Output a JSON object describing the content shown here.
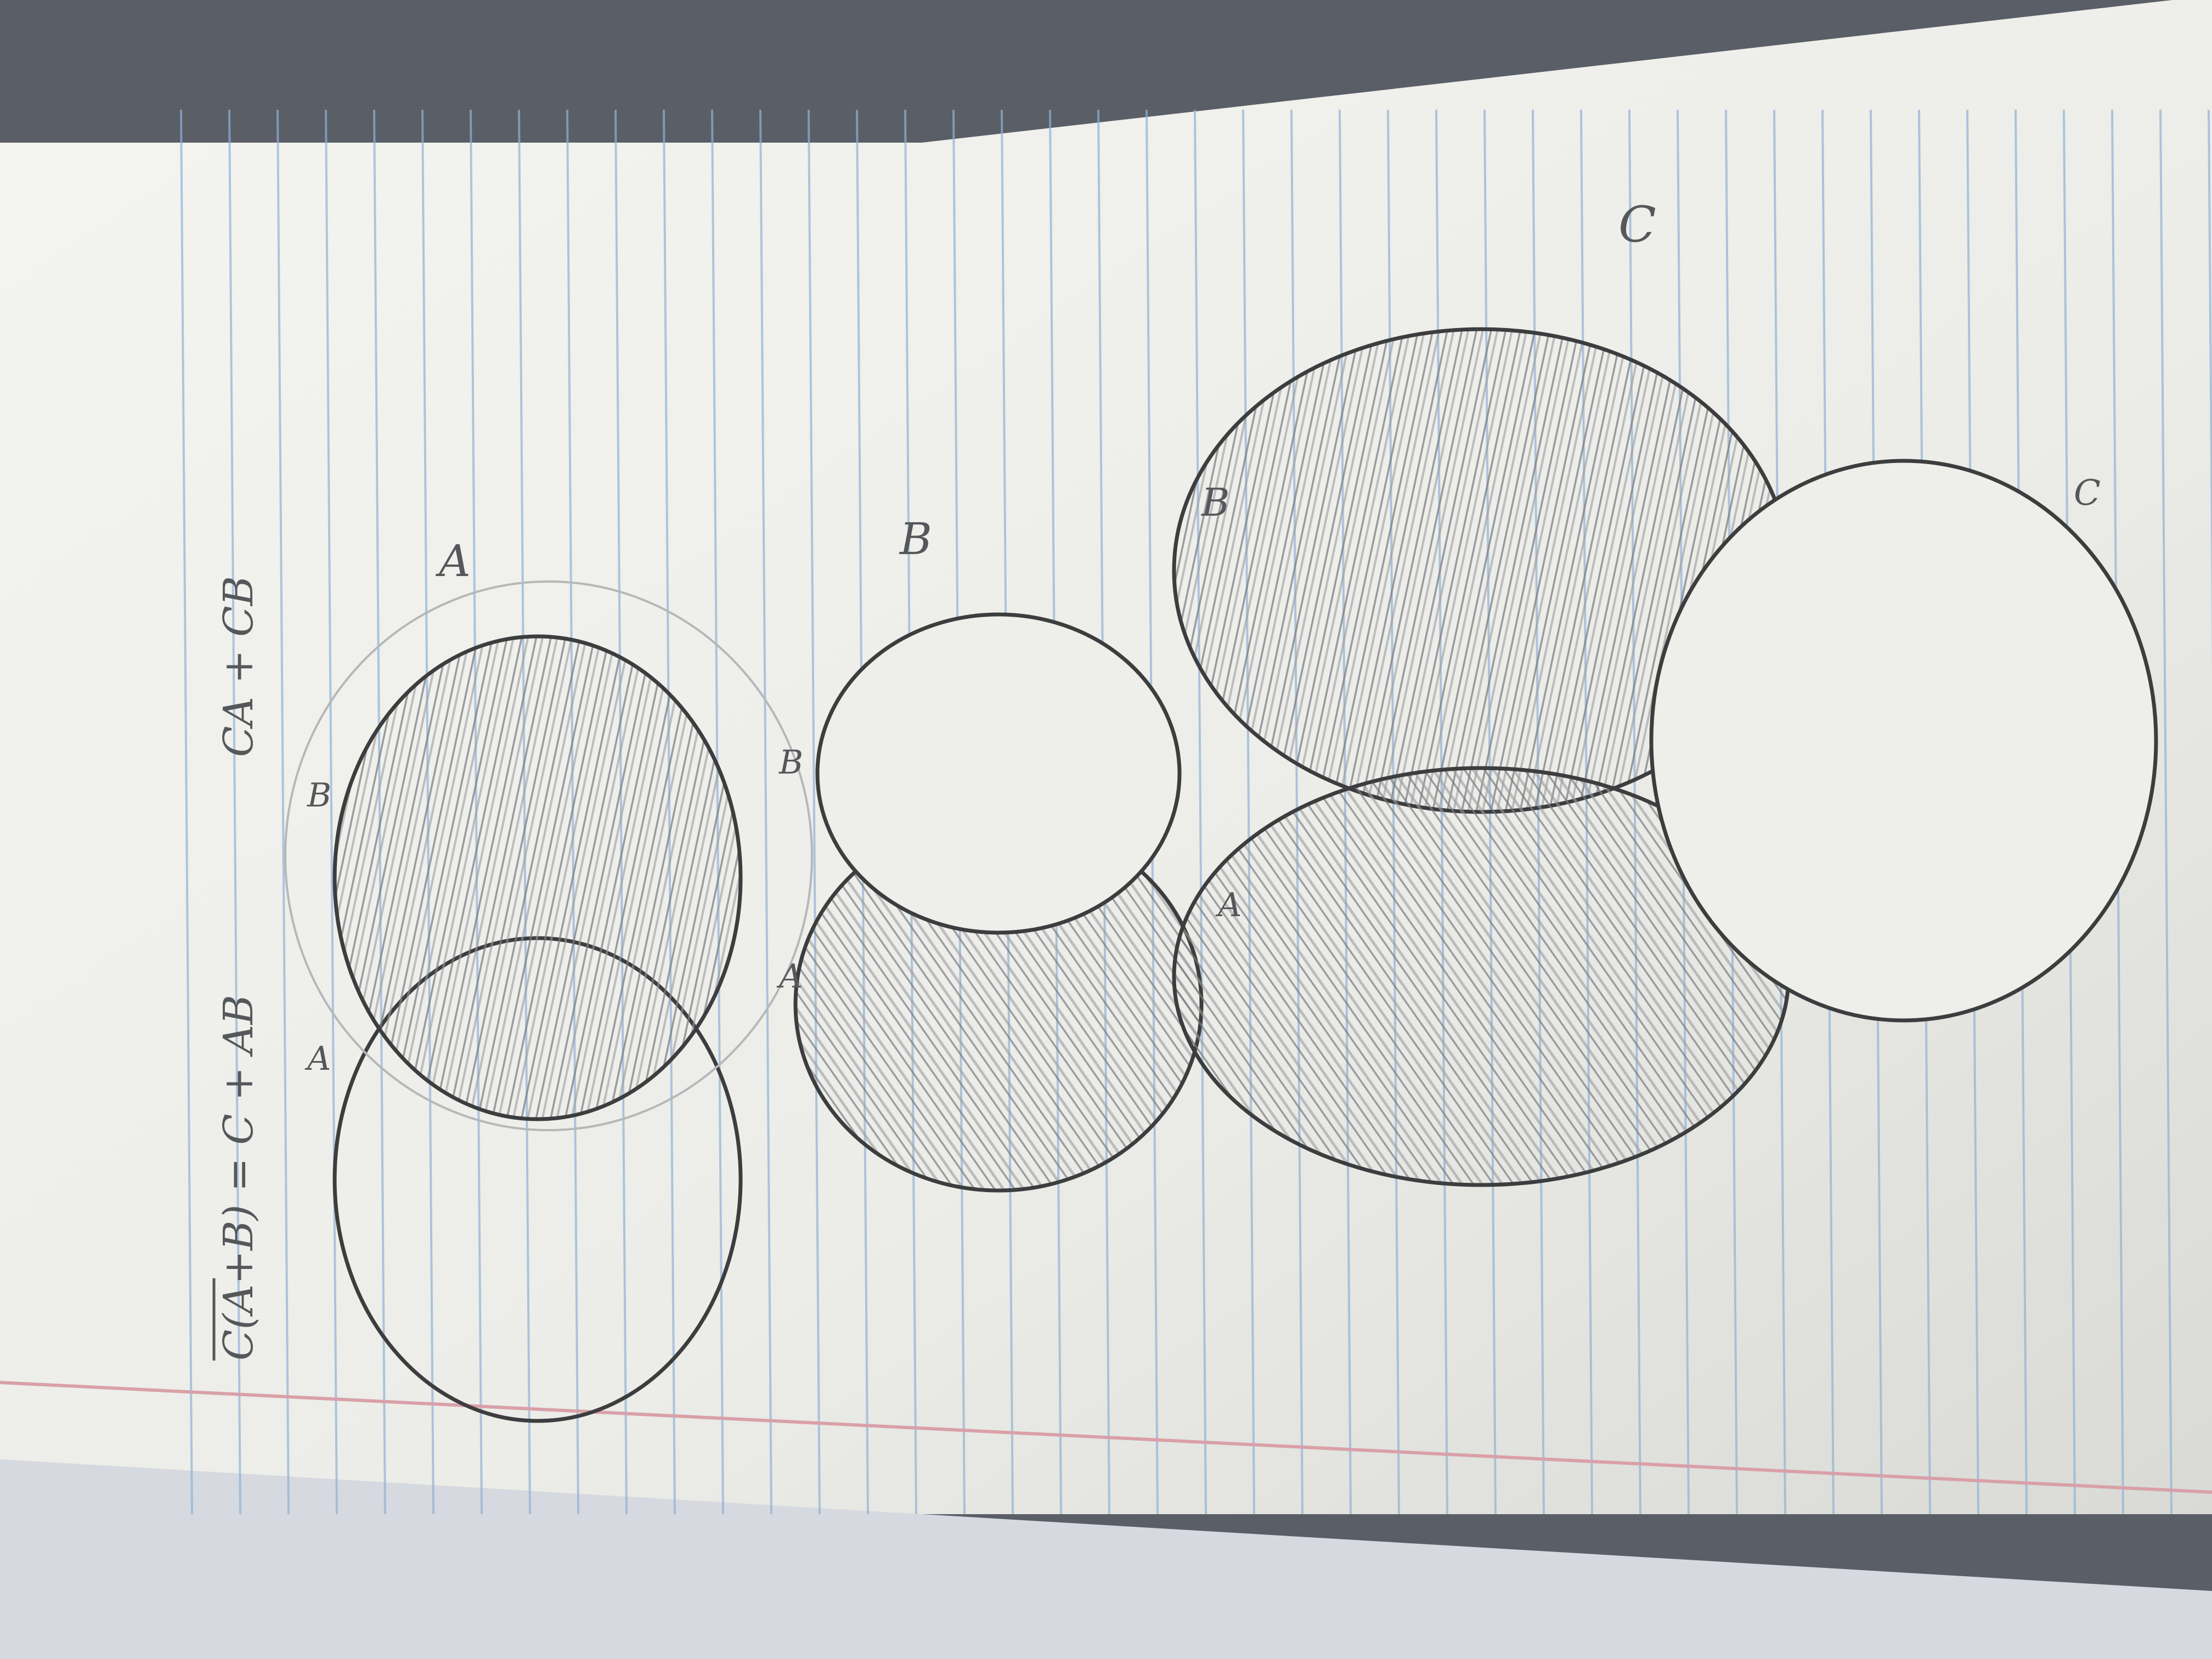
{
  "photo": {
    "subject": "notebook-page-with-venn-diagrams",
    "colors": {
      "paper": "#eeeeea",
      "rule_line": "#8fb2d6",
      "margin_line": "#d9a0a8",
      "pencil": "#3d3d3f",
      "shading": "#8a8b8e",
      "background": "#5a5e66"
    }
  },
  "notes": {
    "equation_left": "C(A+B) = C + AB",
    "equation_right": "CA + CB",
    "diagram1": {
      "label_a": "A",
      "label_b": "B",
      "caption": "A"
    },
    "diagram2": {
      "label_a": "A",
      "label_b": "B",
      "caption": "B"
    },
    "diagram3": {
      "label_a": "A",
      "label_b": "B",
      "label_c": "C",
      "caption": "C"
    }
  }
}
